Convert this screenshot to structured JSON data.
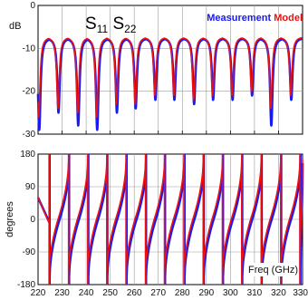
{
  "colors": {
    "measurement": "#1a1aee",
    "model": "#ee1111",
    "grid": "#9a9a9a",
    "frame": "#000000"
  },
  "chart_data": [
    {
      "type": "line",
      "ylabel": "dB",
      "xlim": [
        220,
        330
      ],
      "ylim": [
        -30,
        0
      ],
      "y_ticks": [
        "0",
        "-10",
        "-20",
        "-30"
      ],
      "x_tick_values": [
        220,
        230,
        240,
        250,
        260,
        270,
        280,
        290,
        300,
        310,
        320,
        330
      ],
      "grid": true,
      "annotation_main": "S",
      "annotation_sub1": "11",
      "annotation_sub2": "22",
      "legend": {
        "placement": "top-right",
        "entries": [
          {
            "name": "Measurement",
            "color": "#1a1aee"
          },
          {
            "name": "Model",
            "color": "#ee1111"
          }
        ]
      },
      "series": [
        {
          "name": "Measurement",
          "color": "#1a1aee",
          "resonance_freqs_ghz": [
            220.5,
            228.5,
            236.7,
            244.6,
            252.8,
            260.6,
            268.8,
            276.7,
            284.9,
            292.8,
            300.9,
            309,
            317,
            325.3
          ],
          "peak_db": -7.5,
          "dip_db": [
            -29,
            -25,
            -28,
            -29,
            -25,
            -24,
            -22,
            -22,
            -23,
            -22,
            -22,
            -21,
            -28,
            -22
          ]
        },
        {
          "name": "Model",
          "color": "#ee1111",
          "resonance_freqs_ghz": [
            220.3,
            228.3,
            236.5,
            244.4,
            252.6,
            260.4,
            268.6,
            276.5,
            284.7,
            292.6,
            300.7,
            308.8,
            316.8,
            325.1
          ],
          "peak_db": -7.3,
          "dip_db": [
            -26,
            -24,
            -25,
            -26,
            -23,
            -23,
            -21,
            -21,
            -22,
            -21,
            -21,
            -20,
            -24,
            -21
          ]
        }
      ]
    },
    {
      "type": "line",
      "ylabel": "degrees",
      "xlabel": "Freq (GHz)",
      "xlim": [
        220,
        330
      ],
      "ylim": [
        -180,
        180
      ],
      "y_ticks": [
        "180",
        "90",
        "0",
        "-90",
        "-180"
      ],
      "x_ticks": [
        "220",
        "230",
        "240",
        "250",
        "260",
        "270",
        "280",
        "290",
        "300",
        "310",
        "320",
        "330"
      ],
      "x_tick_values": [
        220,
        230,
        240,
        250,
        260,
        270,
        280,
        290,
        300,
        310,
        320,
        330
      ],
      "grid": true,
      "series": [
        {
          "name": "Measurement",
          "color": "#1a1aee",
          "wrap_freqs_ghz": [
            224.8,
            232.9,
            240.9,
            248.8,
            256.8,
            264.9,
            272.8,
            280.9,
            288.9,
            296.9,
            304.9,
            313,
            321.1,
            329.1
          ],
          "phase_start_deg": -160,
          "phase_end_deg": 155
        },
        {
          "name": "Model",
          "color": "#ee1111",
          "wrap_freqs_ghz": [
            224.6,
            232.7,
            240.7,
            248.6,
            256.6,
            264.7,
            272.6,
            280.7,
            288.7,
            296.7,
            304.7,
            312.8,
            320.9,
            328.9
          ],
          "phase_start_deg": -150,
          "phase_end_deg": 165
        }
      ]
    }
  ]
}
